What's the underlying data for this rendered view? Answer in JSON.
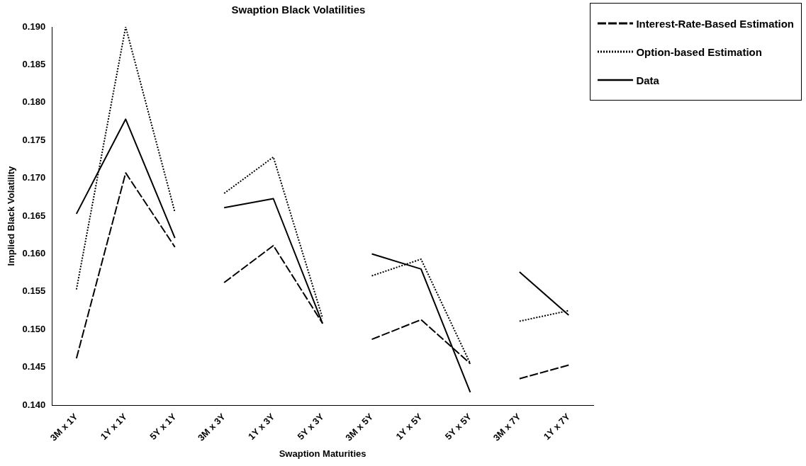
{
  "chart_data": {
    "type": "line",
    "title": "Swaption Black Volatilities",
    "xlabel": "Swaption Maturities",
    "ylabel": "Implied Black Volatility",
    "categories": [
      "3M x 1Y",
      "1Y x 1Y",
      "5Y x 1Y",
      "3M x 3Y",
      "1Y x 3Y",
      "5Y x 3Y",
      "3M x 5Y",
      "1Y x 5Y",
      "5Y x 5Y",
      "3M x 7Y",
      "1Y x 7Y"
    ],
    "series": [
      {
        "name": "Interest-Rate-Based Estimation",
        "color": "#000000",
        "line_style": "dashed",
        "values": [
          0.1462,
          0.1707,
          0.1609,
          null,
          null,
          null,
          null,
          null,
          null,
          null,
          null
        ]
      },
      {
        "color": "#000000",
        "line_style": "dashed",
        "values": [
          null,
          null,
          null,
          0.1562,
          0.1611,
          0.1508,
          null,
          null,
          null,
          null,
          null
        ]
      },
      {
        "color": "#000000",
        "line_style": "dashed",
        "values": [
          null,
          null,
          null,
          null,
          null,
          null,
          0.1487,
          0.1513,
          0.1455,
          null,
          null
        ]
      },
      {
        "color": "#000000",
        "line_style": "dashed",
        "values": [
          null,
          null,
          null,
          null,
          null,
          null,
          null,
          null,
          null,
          0.1435,
          0.1453
        ]
      },
      {
        "name": "Option-based Estimation",
        "color": "#000000",
        "line_style": "dotted",
        "values": [
          0.1553,
          0.19,
          0.1655,
          null,
          null,
          null,
          null,
          null,
          null,
          null,
          null
        ]
      },
      {
        "color": "#000000",
        "line_style": "dotted",
        "values": [
          null,
          null,
          null,
          0.168,
          0.1728,
          0.1515,
          null,
          null,
          null,
          null,
          null
        ]
      },
      {
        "color": "#000000",
        "line_style": "dotted",
        "values": [
          null,
          null,
          null,
          null,
          null,
          null,
          0.1571,
          0.1593,
          0.1455,
          null,
          null
        ]
      },
      {
        "color": "#000000",
        "line_style": "dotted",
        "values": [
          null,
          null,
          null,
          null,
          null,
          null,
          null,
          null,
          null,
          0.1511,
          0.1525
        ]
      },
      {
        "name": "Data",
        "color": "#000000",
        "line_style": "solid",
        "values": [
          0.1653,
          0.1778,
          0.1621,
          null,
          null,
          null,
          null,
          null,
          null,
          null,
          null
        ]
      },
      {
        "color": "#000000",
        "line_style": "solid",
        "values": [
          null,
          null,
          null,
          0.1661,
          0.1673,
          0.1508,
          null,
          null,
          null,
          null,
          null
        ]
      },
      {
        "color": "#000000",
        "line_style": "solid",
        "values": [
          null,
          null,
          null,
          null,
          null,
          null,
          0.16,
          0.158,
          0.1417,
          null,
          null
        ]
      },
      {
        "color": "#000000",
        "line_style": "solid",
        "values": [
          null,
          null,
          null,
          null,
          null,
          null,
          null,
          null,
          null,
          0.1576,
          0.1519
        ]
      }
    ],
    "ylim": [
      0.14,
      0.19
    ],
    "yticks": [
      {
        "value": 0.14,
        "label": "0.140"
      },
      {
        "value": 0.145,
        "label": "0.145"
      },
      {
        "value": 0.15,
        "label": "0.150"
      },
      {
        "value": 0.155,
        "label": "0.155"
      },
      {
        "value": 0.16,
        "label": "0.160"
      },
      {
        "value": 0.165,
        "label": "0.165"
      },
      {
        "value": 0.17,
        "label": "0.170"
      },
      {
        "value": 0.175,
        "label": "0.175"
      },
      {
        "value": 0.18,
        "label": "0.180"
      },
      {
        "value": 0.185,
        "label": "0.185"
      },
      {
        "value": 0.19,
        "label": "0.190"
      }
    ],
    "grid": false,
    "legend": "top right",
    "marker": "none"
  }
}
